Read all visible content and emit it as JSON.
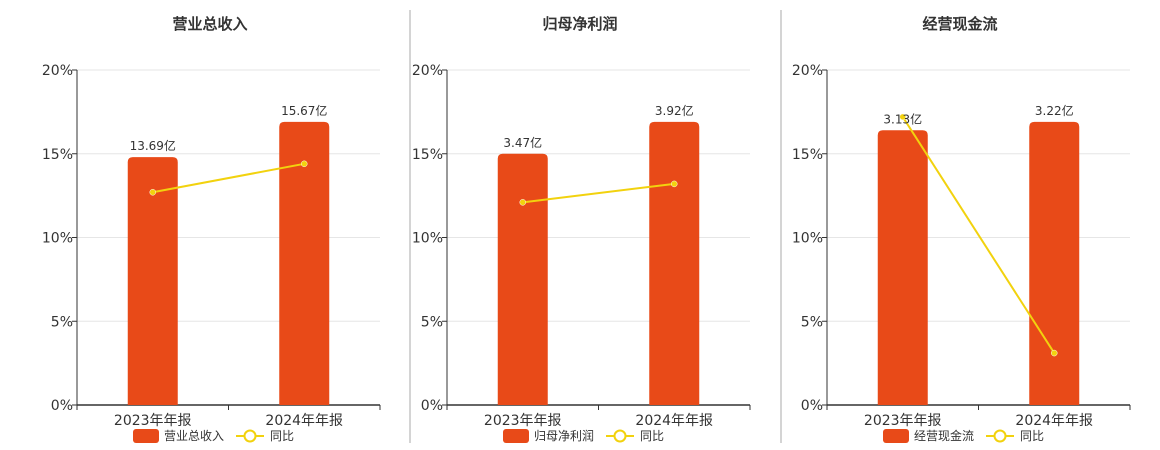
{
  "colors": {
    "bar": "#E84A18",
    "line": "#F2D20E",
    "grid": "#E6E6E6",
    "axis": "#333333",
    "divider": "#AAAAAA"
  },
  "chart_data": [
    {
      "type": "bar",
      "title": "营业总收入",
      "categories": [
        "2023年年报",
        "2024年年报"
      ],
      "ylim": [
        0,
        20
      ],
      "yticks": [
        "0%",
        "5%",
        "10%",
        "15%",
        "20%"
      ],
      "grid": true,
      "legend_placement": "bottom",
      "series": [
        {
          "name": "营业总收入",
          "type": "bar",
          "values": [
            14.8,
            16.9
          ],
          "labels": [
            "13.69亿",
            "15.67亿"
          ]
        },
        {
          "name": "同比",
          "type": "line",
          "values": [
            12.7,
            14.4
          ]
        }
      ]
    },
    {
      "type": "bar",
      "title": "归母净利润",
      "categories": [
        "2023年年报",
        "2024年年报"
      ],
      "ylim": [
        0,
        20
      ],
      "yticks": [
        "0%",
        "5%",
        "10%",
        "15%",
        "20%"
      ],
      "grid": true,
      "legend_placement": "bottom",
      "series": [
        {
          "name": "归母净利润",
          "type": "bar",
          "values": [
            15.0,
            16.9
          ],
          "labels": [
            "3.47亿",
            "3.92亿"
          ]
        },
        {
          "name": "同比",
          "type": "line",
          "values": [
            12.1,
            13.2
          ]
        }
      ]
    },
    {
      "type": "bar",
      "title": "经营现金流",
      "categories": [
        "2023年年报",
        "2024年年报"
      ],
      "ylim": [
        0,
        20
      ],
      "yticks": [
        "0%",
        "5%",
        "10%",
        "15%",
        "20%"
      ],
      "grid": true,
      "legend_placement": "bottom",
      "series": [
        {
          "name": "经营现金流",
          "type": "bar",
          "values": [
            16.4,
            16.9
          ],
          "labels": [
            "3.13亿",
            "3.22亿"
          ]
        },
        {
          "name": "同比",
          "type": "line",
          "values": [
            17.2,
            3.1
          ]
        }
      ]
    }
  ]
}
